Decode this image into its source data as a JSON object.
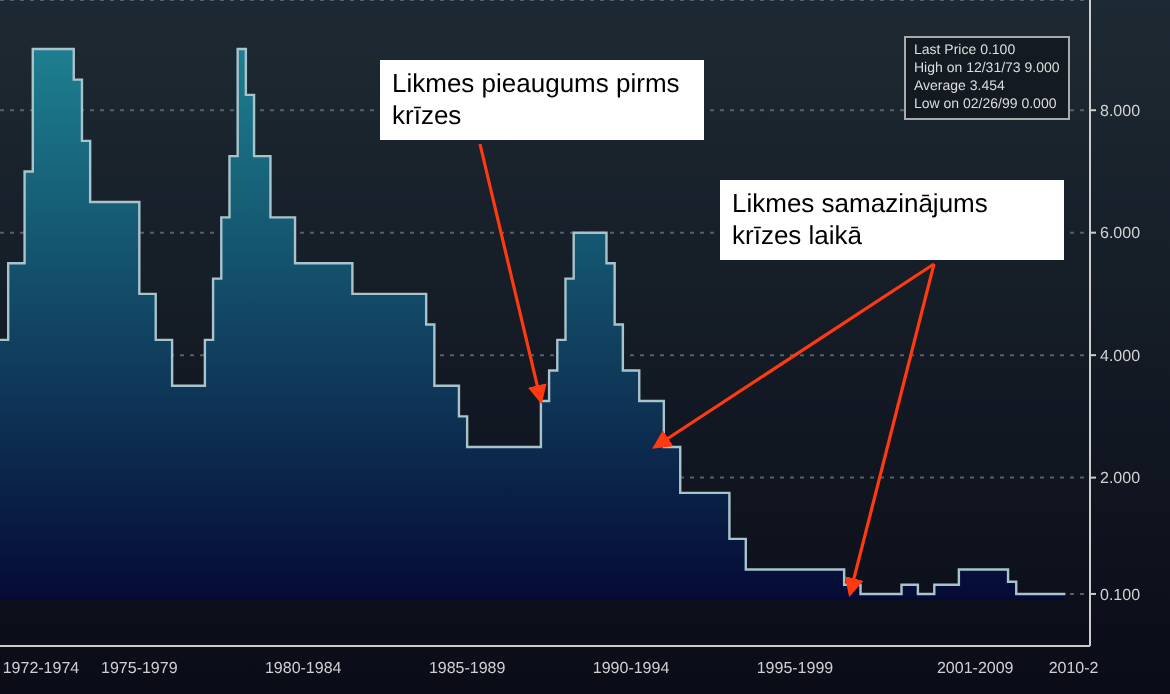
{
  "chart_data": {
    "type": "area",
    "categories": [
      null,
      null,
      null,
      null,
      null,
      "1972-1974",
      null,
      null,
      null,
      null,
      null,
      null,
      null,
      null,
      null,
      null,
      null,
      "1975-1979",
      null,
      null,
      null,
      null,
      null,
      null,
      null,
      null,
      null,
      null,
      null,
      null,
      null,
      null,
      null,
      null,
      null,
      null,
      null,
      "1980-1984",
      null,
      null,
      null,
      null,
      null,
      null,
      null,
      null,
      null,
      null,
      null,
      null,
      null,
      null,
      null,
      null,
      null,
      null,
      null,
      "1985-1989",
      null,
      null,
      null,
      null,
      null,
      null,
      null,
      null,
      null,
      null,
      null,
      null,
      null,
      null,
      null,
      null,
      null,
      null,
      null,
      "1990-1994",
      null,
      null,
      null,
      null,
      null,
      null,
      null,
      null,
      null,
      null,
      null,
      null,
      null,
      null,
      null,
      null,
      null,
      null,
      null,
      "1995-1999",
      null,
      null,
      null,
      null,
      null,
      null,
      null,
      null,
      null,
      null,
      null,
      null,
      null,
      null,
      null,
      null,
      null,
      null,
      null,
      null,
      null,
      "2001-2009",
      null,
      null,
      null,
      null,
      null,
      null,
      null,
      null,
      null,
      null,
      null,
      "2010-2",
      null,
      null
    ],
    "series": [
      {
        "color": "#1d7f90",
        "values": [
          4.25,
          5.5,
          5.5,
          7.0,
          9.0,
          9.0,
          9.0,
          9.0,
          9.0,
          8.5,
          7.5,
          6.5,
          6.5,
          6.5,
          6.5,
          6.5,
          6.5,
          5.0,
          5.0,
          4.25,
          4.25,
          3.5,
          3.5,
          3.5,
          3.5,
          4.25,
          5.25,
          6.25,
          7.25,
          9.0,
          8.25,
          7.25,
          7.25,
          6.25,
          6.25,
          6.25,
          5.5,
          5.5,
          5.5,
          5.5,
          5.5,
          5.5,
          5.5,
          5.0,
          5.0,
          5.0,
          5.0,
          5.0,
          5.0,
          5.0,
          5.0,
          5.0,
          4.5,
          3.5,
          3.5,
          3.5,
          3.0,
          2.5,
          2.5,
          2.5,
          2.5,
          2.5,
          2.5,
          2.5,
          2.5,
          2.5,
          3.25,
          3.75,
          4.25,
          5.25,
          6.0,
          6.0,
          6.0,
          6.0,
          5.5,
          4.5,
          3.75,
          3.75,
          3.25,
          3.25,
          3.25,
          2.5,
          2.5,
          1.75,
          1.75,
          1.75,
          1.75,
          1.75,
          1.75,
          1.0,
          1.0,
          0.5,
          0.5,
          0.5,
          0.5,
          0.5,
          0.5,
          0.5,
          0.5,
          0.5,
          0.5,
          0.5,
          0.5,
          0.25,
          0.25,
          0.1,
          0.1,
          0.1,
          0.1,
          0.1,
          0.25,
          0.25,
          0.1,
          0.1,
          0.25,
          0.25,
          0.25,
          0.5,
          0.5,
          0.5,
          0.5,
          0.5,
          0.5,
          0.3,
          0.1,
          0.1,
          0.1,
          0.1,
          0.1,
          0.1,
          0.1,
          null,
          null,
          null
        ]
      }
    ],
    "ylim": [
      -0.75,
      9.8
    ],
    "yticks": [
      {
        "value": 0.1,
        "label": "0.100"
      },
      {
        "value": 2,
        "label": "2.000"
      },
      {
        "value": 4,
        "label": "4.000"
      },
      {
        "value": 6,
        "label": "6.000"
      },
      {
        "value": 8,
        "label": "8.000"
      }
    ],
    "grid": "y",
    "annotations": [
      {
        "text": "Likmes pieaugums pirms krīzes",
        "y": 3.25
      },
      "Likmes samazinājums krīzes laikā",
      "Last Price 0.100",
      "High on 12/31/73 9.000",
      "Average 3.454",
      "Low on 02/26/99 0.000"
    ]
  }
}
